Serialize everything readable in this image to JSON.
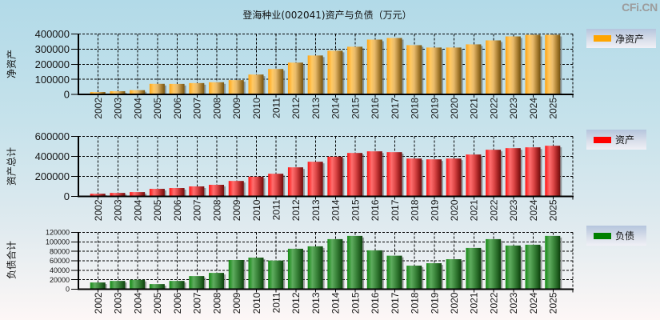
{
  "header": {
    "title": "登海种业(002041)资产与负债（万元）",
    "watermark": "CFi.CN"
  },
  "chart_data": [
    {
      "type": "bar",
      "title": "",
      "xlabel": "",
      "ylabel": "净资产",
      "legend": "净资产",
      "legend_position": "right",
      "color": "#ffa500",
      "grid": true,
      "ylim": [
        0,
        400000
      ],
      "yticks": [
        "0",
        "100000",
        "200000",
        "300000",
        "400000"
      ],
      "categories": [
        "2002",
        "2003",
        "2004",
        "2005",
        "2006",
        "2007",
        "2008",
        "2009",
        "2010",
        "2011",
        "2012",
        "2013",
        "2014",
        "2015",
        "2016",
        "2017",
        "2018",
        "2019",
        "2020",
        "2021",
        "2022",
        "2023",
        "2024",
        "2025"
      ],
      "values": [
        15800,
        21000,
        28000,
        70000,
        69500,
        75000,
        80500,
        94700,
        131600,
        168400,
        210500,
        257800,
        289400,
        315800,
        363100,
        373600,
        326200,
        310500,
        310500,
        331500,
        357800,
        384100,
        394700,
        394700
      ]
    },
    {
      "type": "bar",
      "title": "",
      "xlabel": "",
      "ylabel": "资产总计",
      "legend": "资产",
      "legend_position": "right",
      "color": "#ff0000",
      "grid": true,
      "ylim": [
        0,
        600000
      ],
      "yticks": [
        "0",
        "200000",
        "400000",
        "600000"
      ],
      "categories": [
        "2002",
        "2003",
        "2004",
        "2005",
        "2006",
        "2007",
        "2008",
        "2009",
        "2010",
        "2011",
        "2012",
        "2013",
        "2014",
        "2015",
        "2016",
        "2017",
        "2018",
        "2019",
        "2020",
        "2021",
        "2022",
        "2023",
        "2024",
        "2025"
      ],
      "values": [
        27000,
        35100,
        43200,
        75700,
        83800,
        100000,
        116200,
        154700,
        197300,
        226700,
        290700,
        346700,
        397400,
        434700,
        450700,
        442700,
        378700,
        370700,
        378700,
        418700,
        466700,
        482700,
        490700,
        506700
      ]
    },
    {
      "type": "bar",
      "title": "",
      "xlabel": "",
      "ylabel": "负债合计",
      "legend": "负债",
      "legend_position": "right",
      "color": "#008000",
      "grid": true,
      "ylim": [
        0,
        120000
      ],
      "yticks": [
        "0",
        "20000",
        "40000",
        "60000",
        "80000",
        "100000",
        "120000"
      ],
      "categories": [
        "2002",
        "2003",
        "2004",
        "2005",
        "2006",
        "2007",
        "2008",
        "2009",
        "2010",
        "2011",
        "2012",
        "2013",
        "2014",
        "2015",
        "2016",
        "2017",
        "2018",
        "2019",
        "2020",
        "2021",
        "2022",
        "2023",
        "2024",
        "2025"
      ],
      "values": [
        14200,
        17500,
        19800,
        10800,
        17500,
        27700,
        34500,
        61700,
        66800,
        60600,
        85500,
        90600,
        105800,
        112600,
        82100,
        70800,
        49800,
        54900,
        63400,
        87200,
        105800,
        92300,
        94000,
        112600
      ]
    }
  ]
}
